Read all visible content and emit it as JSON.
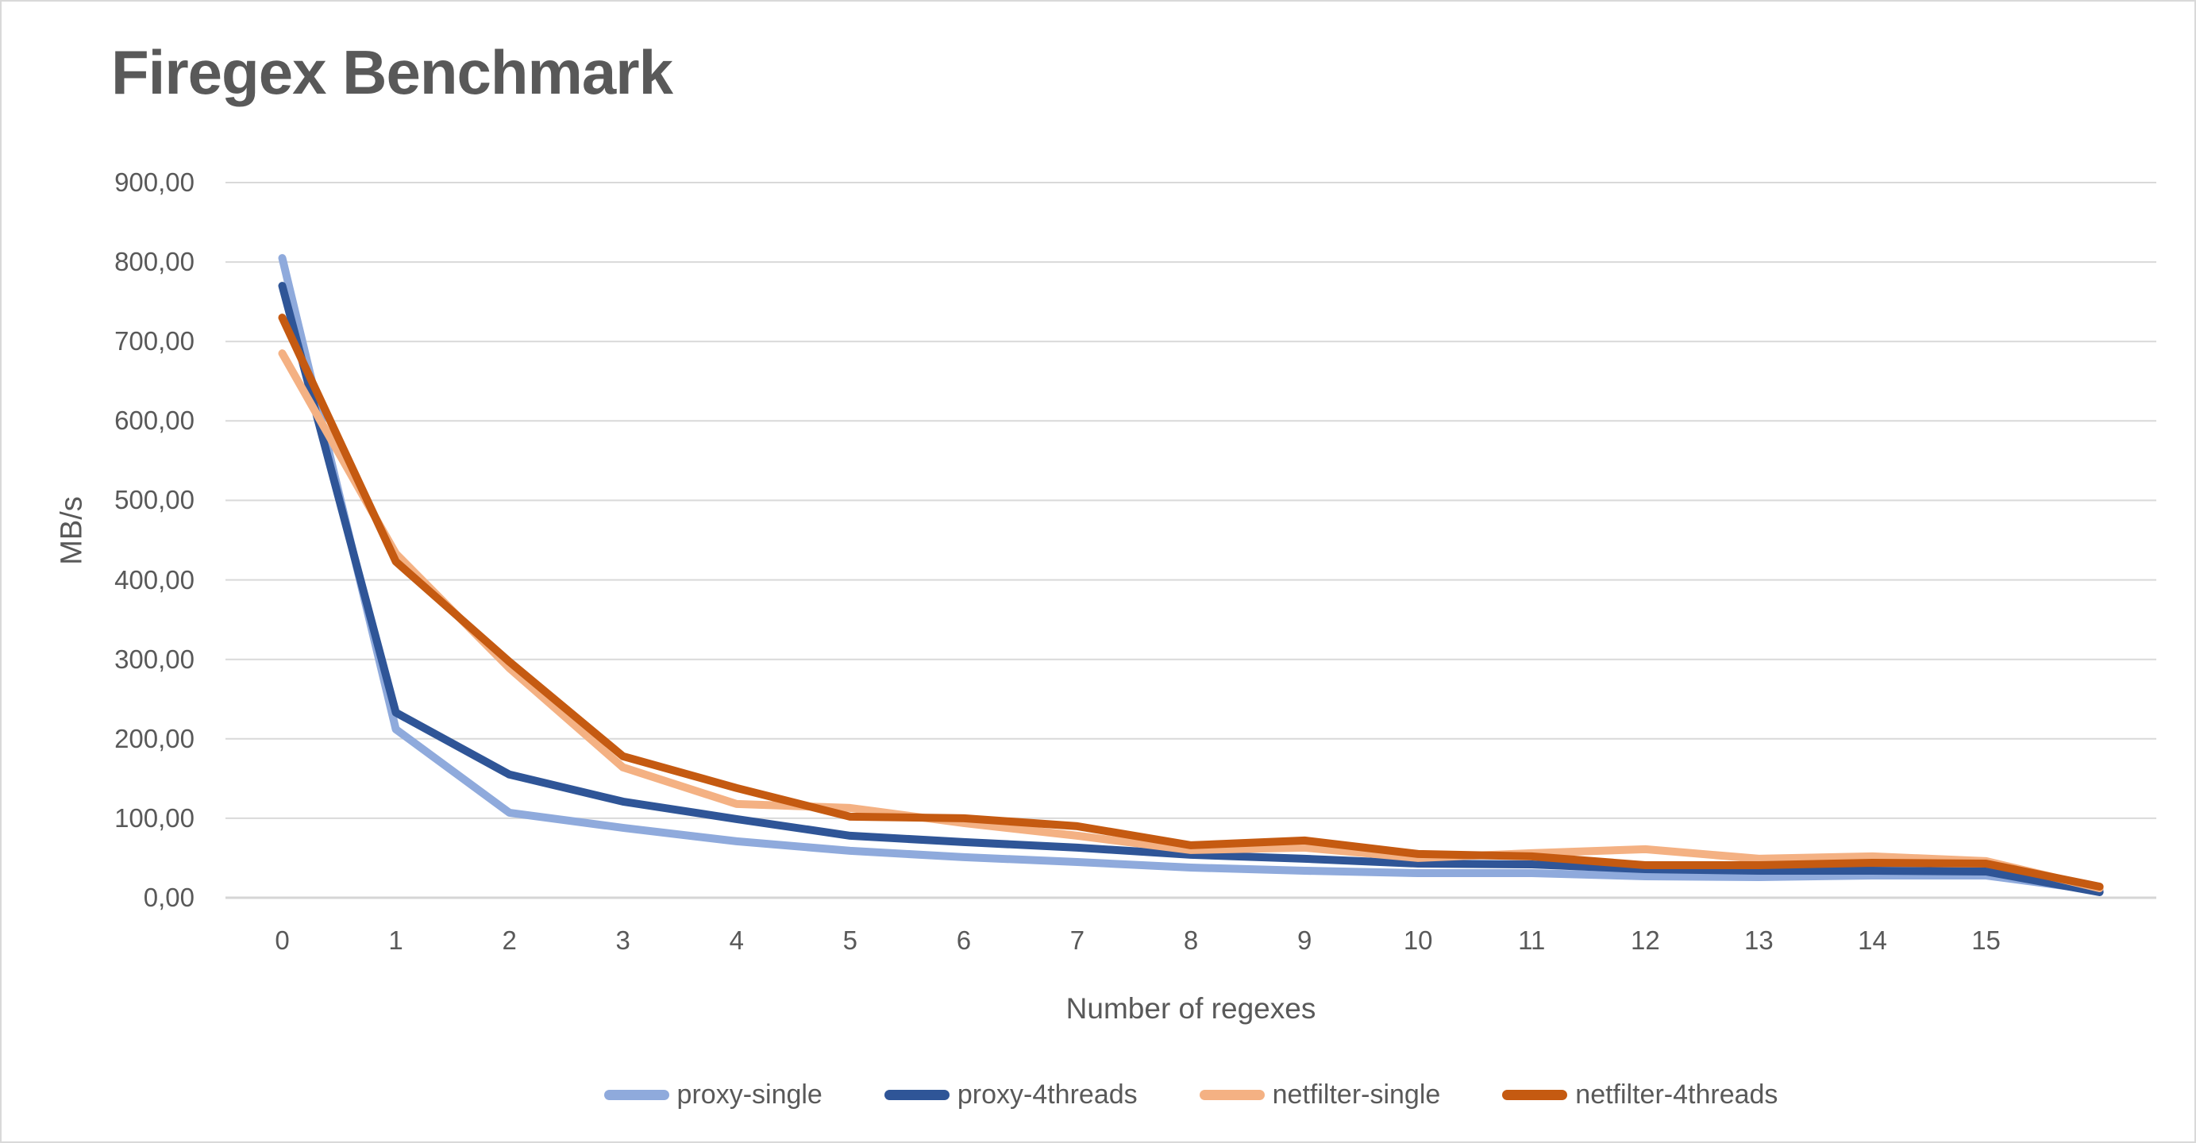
{
  "title": "Firegex Benchmark",
  "colors": {
    "title_text": "#595959",
    "axis_text": "#595959",
    "gridline": "#d9d9d9",
    "axis_line": "#d6d6d6",
    "background": "#ffffff",
    "border": "#d9d9d9"
  },
  "chart_data": {
    "type": "line",
    "title": "Firegex Benchmark",
    "xlabel": "Number of regexes",
    "ylabel": "MB/s",
    "ylim": [
      0,
      900
    ],
    "y_tick_step": 100,
    "y_tick_labels": [
      "0,00",
      "100,00",
      "200,00",
      "300,00",
      "400,00",
      "500,00",
      "600,00",
      "700,00",
      "800,00",
      "900,00"
    ],
    "x": [
      0,
      1,
      2,
      3,
      4,
      5,
      6,
      7,
      8,
      9,
      10,
      11,
      12,
      13,
      14,
      15,
      16
    ],
    "x_tick_labels": [
      "0",
      "1",
      "2",
      "3",
      "4",
      "5",
      "6",
      "7",
      "8",
      "9",
      "10",
      "11",
      "12",
      "13",
      "14",
      "15",
      ""
    ],
    "grid": true,
    "legend_position": "bottom",
    "series": [
      {
        "name": "proxy-single",
        "color": "#8FAADC",
        "values": [
          805,
          212,
          107,
          88,
          71,
          59,
          51,
          45,
          38,
          34,
          31,
          31,
          27,
          26,
          28,
          28,
          9
        ]
      },
      {
        "name": "proxy-4threads",
        "color": "#2F5597",
        "values": [
          770,
          233,
          155,
          121,
          99,
          78,
          70,
          63,
          54,
          49,
          43,
          42,
          36,
          34,
          34,
          33,
          7
        ]
      },
      {
        "name": "netfilter-single",
        "color": "#F4B183",
        "values": [
          685,
          433,
          289,
          164,
          118,
          113,
          94,
          78,
          60,
          63,
          50,
          56,
          61,
          49,
          52,
          46,
          12
        ]
      },
      {
        "name": "netfilter-4threads",
        "color": "#C55A11",
        "values": [
          730,
          423,
          297,
          178,
          138,
          102,
          100,
          90,
          66,
          72,
          55,
          52,
          41,
          41,
          44,
          43,
          14
        ]
      }
    ]
  }
}
